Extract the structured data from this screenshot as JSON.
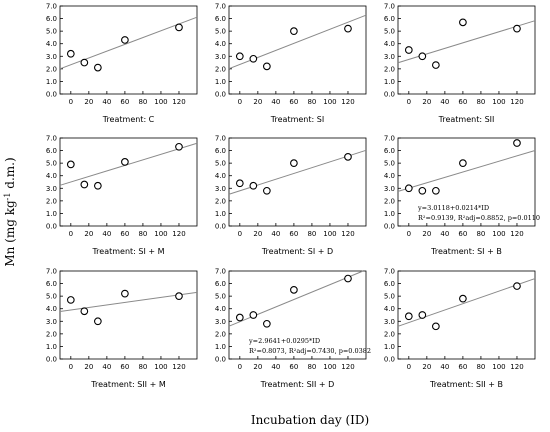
{
  "figure": {
    "ylabel_main": "Mn (mg kg",
    "ylabel_sup": "-1",
    "ylabel_tail": " d.m.)",
    "xlabel": "Incubation day (ID)"
  },
  "chart_data": [
    {
      "type": "scatter",
      "title": "Treatment: C",
      "x": [
        0,
        15,
        30,
        60,
        120
      ],
      "y": [
        3.2,
        2.5,
        2.1,
        4.3,
        5.3
      ],
      "fit": {
        "intercept": 2.33,
        "slope": 0.027
      },
      "xticks": [
        0,
        20,
        40,
        60,
        80,
        100,
        120
      ],
      "ylim": [
        0,
        7
      ],
      "yticks": [
        "0.0",
        "1.0",
        "2.0",
        "3.0",
        "4.0",
        "5.0",
        "6.0",
        "7.0"
      ],
      "grid": false
    },
    {
      "type": "scatter",
      "title": "Treatment: SI",
      "x": [
        0,
        15,
        30,
        60,
        120
      ],
      "y": [
        3.0,
        2.8,
        2.2,
        5.0,
        5.2
      ],
      "fit": {
        "intercept": 2.35,
        "slope": 0.028
      },
      "xticks": [
        0,
        20,
        40,
        60,
        80,
        100,
        120
      ],
      "ylim": [
        0,
        7
      ],
      "yticks": [
        "0.0",
        "1.0",
        "2.0",
        "3.0",
        "4.0",
        "5.0",
        "6.0",
        "7.0"
      ],
      "grid": false
    },
    {
      "type": "scatter",
      "title": "Treatment: SII",
      "x": [
        0,
        15,
        30,
        60,
        120
      ],
      "y": [
        3.5,
        3.0,
        2.3,
        5.7,
        5.2
      ],
      "fit": {
        "intercept": 2.75,
        "slope": 0.022
      },
      "xticks": [
        0,
        20,
        40,
        60,
        80,
        100,
        120
      ],
      "ylim": [
        0,
        7
      ],
      "yticks": [
        "0.0",
        "1.0",
        "2.0",
        "3.0",
        "4.0",
        "5.0",
        "6.0",
        "7.0"
      ],
      "grid": false
    },
    {
      "type": "scatter",
      "title": "Treatment: SI + M",
      "x": [
        0,
        15,
        30,
        60,
        120
      ],
      "y": [
        4.9,
        3.3,
        3.2,
        5.1,
        6.3
      ],
      "fit": {
        "intercept": 3.5,
        "slope": 0.022
      },
      "xticks": [
        0,
        20,
        40,
        60,
        80,
        100,
        120
      ],
      "ylim": [
        0,
        7
      ],
      "yticks": [
        "0.0",
        "1.0",
        "2.0",
        "3.0",
        "4.0",
        "5.0",
        "6.0",
        "7.0"
      ],
      "grid": false
    },
    {
      "type": "scatter",
      "title": "Treatment: SI + D",
      "x": [
        0,
        15,
        30,
        60,
        120
      ],
      "y": [
        3.4,
        3.2,
        2.8,
        5.0,
        5.5
      ],
      "fit": {
        "intercept": 2.8,
        "slope": 0.023
      },
      "xticks": [
        0,
        20,
        40,
        60,
        80,
        100,
        120
      ],
      "ylim": [
        0,
        7
      ],
      "yticks": [
        "0.0",
        "1.0",
        "2.0",
        "3.0",
        "4.0",
        "5.0",
        "6.0",
        "7.0"
      ],
      "grid": false
    },
    {
      "type": "scatter",
      "title": "Treatment: SI + B",
      "x": [
        0,
        15,
        30,
        60,
        120
      ],
      "y": [
        3.0,
        2.8,
        2.8,
        5.0,
        6.6
      ],
      "fit": {
        "intercept": 3.0118,
        "slope": 0.0214
      },
      "equation": {
        "line1": "y=3.0118+0.0214*ID",
        "line2": "R²=0.9139, R²adj=0.8852, p=0.0110"
      },
      "xticks": [
        0,
        20,
        40,
        60,
        80,
        100,
        120
      ],
      "ylim": [
        0,
        7
      ],
      "yticks": [
        "0.0",
        "1.0",
        "2.0",
        "3.0",
        "4.0",
        "5.0",
        "6.0",
        "7.0"
      ],
      "grid": false
    },
    {
      "type": "scatter",
      "title": "Treatment: SII + M",
      "x": [
        0,
        15,
        30,
        60,
        120
      ],
      "y": [
        4.7,
        3.8,
        3.0,
        5.2,
        5.0
      ],
      "fit": {
        "intercept": 3.9,
        "slope": 0.01
      },
      "xticks": [
        0,
        20,
        40,
        60,
        80,
        100,
        120
      ],
      "ylim": [
        0,
        7
      ],
      "yticks": [
        "0.0",
        "1.0",
        "2.0",
        "3.0",
        "4.0",
        "5.0",
        "6.0",
        "7.0"
      ],
      "grid": false
    },
    {
      "type": "scatter",
      "title": "Treatment: SII + D",
      "x": [
        0,
        15,
        30,
        60,
        120
      ],
      "y": [
        3.3,
        3.5,
        2.8,
        5.5,
        6.4
      ],
      "fit": {
        "intercept": 2.9641,
        "slope": 0.0295
      },
      "equation": {
        "line1": "y=2.9641+0.0295*ID",
        "line2": "R²=0.8073, R²adj=0.7430, p=0.0382"
      },
      "xticks": [
        0,
        20,
        40,
        60,
        80,
        100,
        120
      ],
      "ylim": [
        0,
        7
      ],
      "yticks": [
        "0.0",
        "1.0",
        "2.0",
        "3.0",
        "4.0",
        "5.0",
        "6.0",
        "7.0"
      ],
      "grid": false
    },
    {
      "type": "scatter",
      "title": "Treatment: SII + B",
      "x": [
        0,
        15,
        30,
        60,
        120
      ],
      "y": [
        3.4,
        3.5,
        2.6,
        4.8,
        5.8
      ],
      "fit": {
        "intercept": 2.9,
        "slope": 0.025
      },
      "xticks": [
        0,
        20,
        40,
        60,
        80,
        100,
        120
      ],
      "ylim": [
        0,
        7
      ],
      "yticks": [
        "0.0",
        "1.0",
        "2.0",
        "3.0",
        "4.0",
        "5.0",
        "6.0",
        "7.0"
      ],
      "grid": false
    }
  ]
}
